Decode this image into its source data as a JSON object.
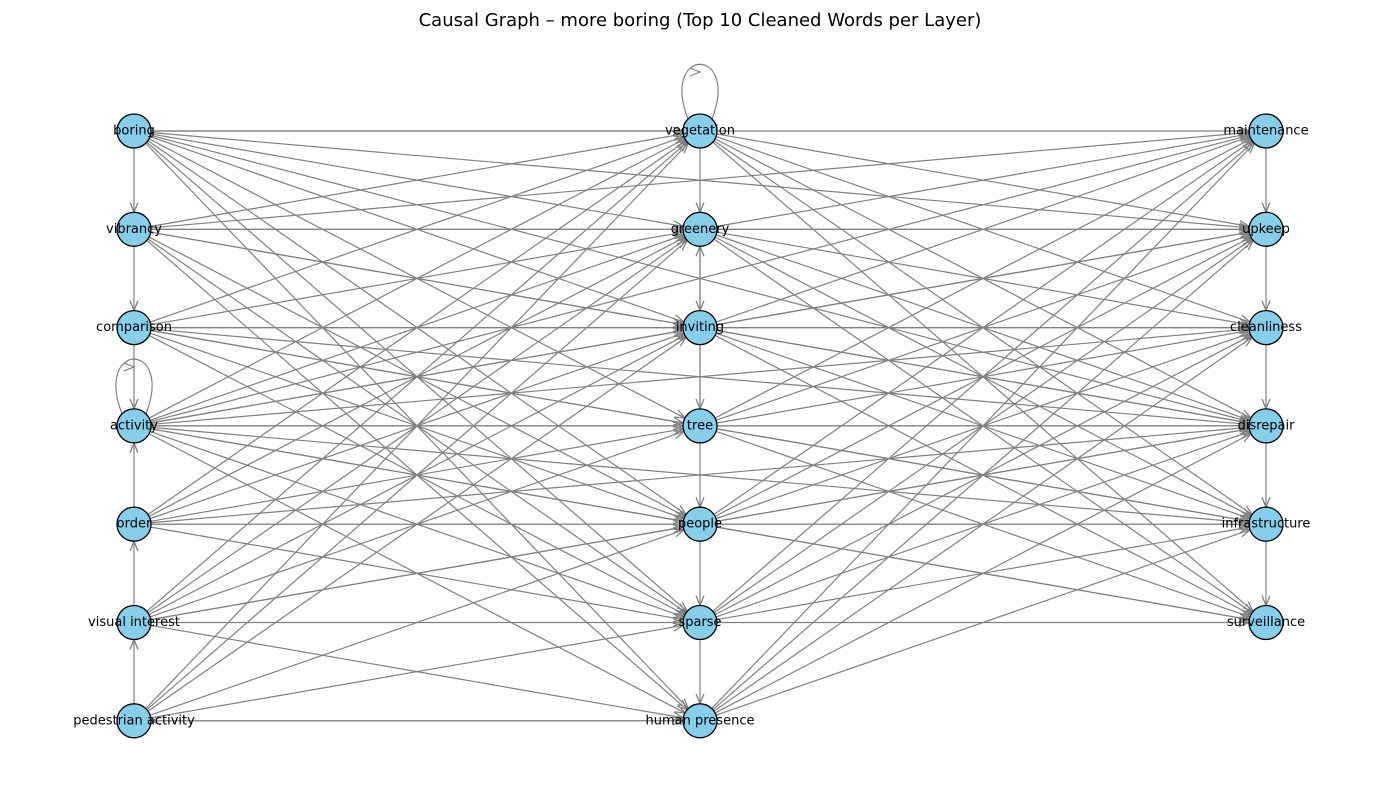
{
  "title": "Causal Graph – more boring (Top 10 Cleaned Words per Layer)",
  "colors": {
    "node_fill": "#87ceeb",
    "node_stroke": "#000000",
    "edge": "#808080"
  },
  "columns": [
    [
      "boring",
      "vibrancy",
      "comparison",
      "activity",
      "order",
      "visual interest",
      "pedestrian activity"
    ],
    [
      "vegetation",
      "greenery",
      "inviting",
      "tree",
      "people",
      "sparse",
      "human presence"
    ],
    [
      "maintenance",
      "upkeep",
      "cleanliness",
      "disrepair",
      "infrastructure",
      "surveillance"
    ]
  ],
  "self_loops": [
    "vegetation",
    "activity"
  ],
  "edges": [
    [
      "boring",
      "vibrancy"
    ],
    [
      "vibrancy",
      "comparison"
    ],
    [
      "comparison",
      "activity"
    ],
    [
      "order",
      "activity"
    ],
    [
      "visual interest",
      "order"
    ],
    [
      "pedestrian activity",
      "visual interest"
    ],
    [
      "vegetation",
      "greenery"
    ],
    [
      "greenery",
      "inviting"
    ],
    [
      "inviting",
      "tree"
    ],
    [
      "tree",
      "people"
    ],
    [
      "people",
      "sparse"
    ],
    [
      "sparse",
      "human presence"
    ],
    [
      "tree",
      "greenery"
    ],
    [
      "maintenance",
      "upkeep"
    ],
    [
      "upkeep",
      "cleanliness"
    ],
    [
      "cleanliness",
      "disrepair"
    ],
    [
      "disrepair",
      "infrastructure"
    ],
    [
      "infrastructure",
      "surveillance"
    ],
    [
      "boring",
      "vegetation"
    ],
    [
      "boring",
      "maintenance"
    ],
    [
      "boring",
      "greenery"
    ],
    [
      "boring",
      "inviting"
    ],
    [
      "boring",
      "tree"
    ],
    [
      "boring",
      "people"
    ],
    [
      "boring",
      "sparse"
    ],
    [
      "boring",
      "human presence"
    ],
    [
      "boring",
      "disrepair"
    ],
    [
      "boring",
      "upkeep"
    ],
    [
      "vibrancy",
      "vegetation"
    ],
    [
      "vibrancy",
      "maintenance"
    ],
    [
      "vibrancy",
      "greenery"
    ],
    [
      "vibrancy",
      "upkeep"
    ],
    [
      "vibrancy",
      "inviting"
    ],
    [
      "vibrancy",
      "people"
    ],
    [
      "vibrancy",
      "sparse"
    ],
    [
      "vibrancy",
      "disrepair"
    ],
    [
      "vibrancy",
      "human presence"
    ],
    [
      "comparison",
      "vegetation"
    ],
    [
      "comparison",
      "greenery"
    ],
    [
      "comparison",
      "inviting"
    ],
    [
      "comparison",
      "cleanliness"
    ],
    [
      "comparison",
      "tree"
    ],
    [
      "comparison",
      "people"
    ],
    [
      "comparison",
      "sparse"
    ],
    [
      "comparison",
      "disrepair"
    ],
    [
      "comparison",
      "infrastructure"
    ],
    [
      "activity",
      "vegetation"
    ],
    [
      "activity",
      "greenery"
    ],
    [
      "activity",
      "maintenance"
    ],
    [
      "activity",
      "upkeep"
    ],
    [
      "activity",
      "inviting"
    ],
    [
      "activity",
      "tree"
    ],
    [
      "activity",
      "disrepair"
    ],
    [
      "activity",
      "people"
    ],
    [
      "activity",
      "sparse"
    ],
    [
      "activity",
      "human presence"
    ],
    [
      "activity",
      "infrastructure"
    ],
    [
      "activity",
      "surveillance"
    ],
    [
      "activity",
      "cleanliness"
    ],
    [
      "order",
      "vegetation"
    ],
    [
      "order",
      "greenery"
    ],
    [
      "order",
      "inviting"
    ],
    [
      "order",
      "tree"
    ],
    [
      "order",
      "people"
    ],
    [
      "order",
      "sparse"
    ],
    [
      "order",
      "disrepair"
    ],
    [
      "order",
      "infrastructure"
    ],
    [
      "visual interest",
      "vegetation"
    ],
    [
      "visual interest",
      "greenery"
    ],
    [
      "visual interest",
      "inviting"
    ],
    [
      "visual interest",
      "tree"
    ],
    [
      "visual interest",
      "people"
    ],
    [
      "visual interest",
      "sparse"
    ],
    [
      "visual interest",
      "human presence"
    ],
    [
      "visual interest",
      "disrepair"
    ],
    [
      "pedestrian activity",
      "vegetation"
    ],
    [
      "pedestrian activity",
      "greenery"
    ],
    [
      "pedestrian activity",
      "inviting"
    ],
    [
      "pedestrian activity",
      "people"
    ],
    [
      "pedestrian activity",
      "sparse"
    ],
    [
      "pedestrian activity",
      "human presence"
    ],
    [
      "vegetation",
      "upkeep"
    ],
    [
      "vegetation",
      "cleanliness"
    ],
    [
      "vegetation",
      "disrepair"
    ],
    [
      "vegetation",
      "infrastructure"
    ],
    [
      "vegetation",
      "surveillance"
    ],
    [
      "greenery",
      "maintenance"
    ],
    [
      "greenery",
      "upkeep"
    ],
    [
      "greenery",
      "disrepair"
    ],
    [
      "greenery",
      "infrastructure"
    ],
    [
      "greenery",
      "surveillance"
    ],
    [
      "greenery",
      "cleanliness"
    ],
    [
      "inviting",
      "maintenance"
    ],
    [
      "inviting",
      "upkeep"
    ],
    [
      "inviting",
      "cleanliness"
    ],
    [
      "inviting",
      "disrepair"
    ],
    [
      "inviting",
      "infrastructure"
    ],
    [
      "inviting",
      "surveillance"
    ],
    [
      "tree",
      "maintenance"
    ],
    [
      "tree",
      "upkeep"
    ],
    [
      "tree",
      "cleanliness"
    ],
    [
      "tree",
      "disrepair"
    ],
    [
      "tree",
      "infrastructure"
    ],
    [
      "tree",
      "surveillance"
    ],
    [
      "people",
      "maintenance"
    ],
    [
      "people",
      "upkeep"
    ],
    [
      "people",
      "disrepair"
    ],
    [
      "people",
      "infrastructure"
    ],
    [
      "people",
      "surveillance"
    ],
    [
      "people",
      "cleanliness"
    ],
    [
      "sparse",
      "maintenance"
    ],
    [
      "sparse",
      "upkeep"
    ],
    [
      "sparse",
      "cleanliness"
    ],
    [
      "sparse",
      "disrepair"
    ],
    [
      "sparse",
      "surveillance"
    ],
    [
      "sparse",
      "infrastructure"
    ],
    [
      "human presence",
      "maintenance"
    ],
    [
      "human presence",
      "upkeep"
    ],
    [
      "human presence",
      "disrepair"
    ],
    [
      "human presence",
      "cleanliness"
    ],
    [
      "human presence",
      "infrastructure"
    ],
    [
      "human presence",
      "pedestrian activity"
    ]
  ]
}
